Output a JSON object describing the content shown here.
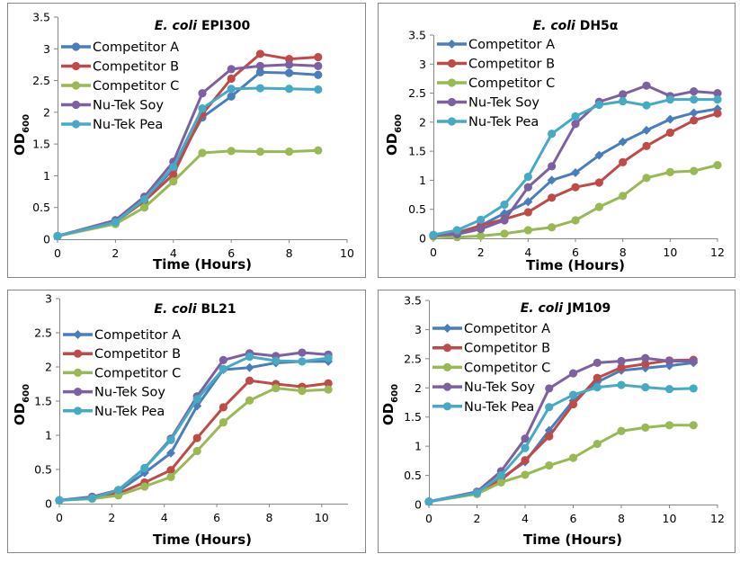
{
  "chart_data": [
    {
      "type": "line",
      "title_italic": "E. coli",
      "title_strain": "EPI300",
      "xlabel": "Time (Hours)",
      "ylabel": "OD",
      "ylabel_sub": "600",
      "xlim": [
        0,
        10
      ],
      "ylim": [
        0,
        3.5
      ],
      "xticks": [
        0,
        2,
        4,
        6,
        8,
        10
      ],
      "yticks": [
        0,
        0.5,
        1,
        1.5,
        2,
        2.5,
        3,
        3.5
      ],
      "grid": false,
      "legend": "top-left",
      "x": [
        0,
        2,
        3,
        4,
        5,
        6,
        7,
        8,
        9
      ],
      "series": [
        {
          "name": "Competitor A",
          "color": "#4a7ebb",
          "marker": "circle",
          "values": [
            0.05,
            0.28,
            0.63,
            1.1,
            1.92,
            2.25,
            2.63,
            2.62,
            2.59
          ]
        },
        {
          "name": "Competitor B",
          "color": "#be4b48",
          "marker": "circle",
          "values": [
            0.05,
            0.27,
            0.6,
            1.02,
            1.97,
            2.53,
            2.92,
            2.84,
            2.87
          ]
        },
        {
          "name": "Competitor C",
          "color": "#98b954",
          "marker": "circle",
          "values": [
            0.05,
            0.24,
            0.5,
            0.91,
            1.36,
            1.39,
            1.38,
            1.38,
            1.4
          ]
        },
        {
          "name": "Nu-Tek Soy",
          "color": "#7d60a0",
          "marker": "circle",
          "values": [
            0.05,
            0.3,
            0.67,
            1.22,
            2.3,
            2.68,
            2.73,
            2.75,
            2.73
          ]
        },
        {
          "name": "Nu-Tek Pea",
          "color": "#46aac5",
          "marker": "circle",
          "values": [
            0.05,
            0.27,
            0.63,
            1.14,
            2.06,
            2.37,
            2.38,
            2.37,
            2.36
          ]
        }
      ]
    },
    {
      "type": "line",
      "title_italic": "E. coli",
      "title_strain": "DH5α",
      "xlabel": "Time (Hours)",
      "ylabel": "OD",
      "ylabel_sub": "600",
      "xlim": [
        0,
        12
      ],
      "ylim": [
        0,
        3.5
      ],
      "xticks": [
        0,
        2,
        4,
        6,
        8,
        10,
        12
      ],
      "yticks": [
        0,
        0.5,
        1,
        1.5,
        2,
        2.5,
        3,
        3.5
      ],
      "grid": false,
      "legend": "top-left",
      "x": [
        0,
        1,
        2,
        3,
        4,
        5,
        6,
        7,
        8,
        9,
        10,
        11,
        12
      ],
      "series": [
        {
          "name": "Competitor A",
          "color": "#4a7ebb",
          "marker": "diamond",
          "values": [
            0.05,
            0.1,
            0.22,
            0.43,
            0.63,
            1.0,
            1.13,
            1.43,
            1.66,
            1.86,
            2.05,
            2.16,
            2.23
          ]
        },
        {
          "name": "Competitor B",
          "color": "#be4b48",
          "marker": "circle",
          "values": [
            0.05,
            0.08,
            0.22,
            0.33,
            0.45,
            0.7,
            0.88,
            0.96,
            1.31,
            1.59,
            1.82,
            2.03,
            2.15
          ]
        },
        {
          "name": "Competitor C",
          "color": "#98b954",
          "marker": "circle",
          "values": [
            0.03,
            0.02,
            0.04,
            0.08,
            0.14,
            0.19,
            0.31,
            0.54,
            0.73,
            1.04,
            1.14,
            1.16,
            1.26
          ]
        },
        {
          "name": "Nu-Tek Soy",
          "color": "#7d60a0",
          "marker": "circle",
          "values": [
            0.05,
            0.07,
            0.16,
            0.31,
            0.88,
            1.24,
            1.97,
            2.35,
            2.48,
            2.63,
            2.45,
            2.53,
            2.5
          ]
        },
        {
          "name": "Nu-Tek Pea",
          "color": "#46aac5",
          "marker": "circle",
          "values": [
            0.06,
            0.14,
            0.32,
            0.58,
            1.06,
            1.8,
            2.1,
            2.3,
            2.36,
            2.29,
            2.39,
            2.39,
            2.39
          ]
        }
      ]
    },
    {
      "type": "line",
      "title_italic": "E. coli",
      "title_strain": "BL21",
      "xlabel": "Time (Hours)",
      "ylabel": "OD",
      "ylabel_sub": "600",
      "xlim": [
        0,
        11
      ],
      "ylim": [
        0,
        3
      ],
      "xticks": [
        0,
        2,
        4,
        6,
        8,
        10
      ],
      "yticks": [
        0,
        0.5,
        1,
        1.5,
        2,
        2.5,
        3
      ],
      "grid": false,
      "legend": "top-left",
      "x": [
        0,
        1.25,
        2.25,
        3.25,
        4.25,
        5.25,
        6.25,
        7.25,
        8.25,
        9.25,
        10.25
      ],
      "series": [
        {
          "name": "Competitor A",
          "color": "#4a7ebb",
          "marker": "diamond",
          "values": [
            0.05,
            0.08,
            0.18,
            0.45,
            0.74,
            1.43,
            1.96,
            1.99,
            2.06,
            2.08,
            2.08
          ]
        },
        {
          "name": "Competitor B",
          "color": "#be4b48",
          "marker": "circle",
          "values": [
            0.05,
            0.08,
            0.15,
            0.31,
            0.49,
            0.96,
            1.41,
            1.8,
            1.75,
            1.71,
            1.76
          ]
        },
        {
          "name": "Competitor C",
          "color": "#98b954",
          "marker": "circle",
          "values": [
            0.05,
            0.07,
            0.12,
            0.25,
            0.39,
            0.77,
            1.19,
            1.51,
            1.69,
            1.65,
            1.67
          ]
        },
        {
          "name": "Nu-Tek Soy",
          "color": "#7d60a0",
          "marker": "circle",
          "values": [
            0.05,
            0.1,
            0.2,
            0.52,
            0.95,
            1.57,
            2.1,
            2.2,
            2.16,
            2.21,
            2.18
          ]
        },
        {
          "name": "Nu-Tek Pea",
          "color": "#46aac5",
          "marker": "circle",
          "values": [
            0.05,
            0.08,
            0.2,
            0.52,
            0.93,
            1.53,
            1.97,
            2.15,
            2.09,
            2.08,
            2.13
          ]
        }
      ]
    },
    {
      "type": "line",
      "title_italic": "E. coli",
      "title_strain": "JM109",
      "xlabel": "Time (Hours)",
      "ylabel": "OD",
      "ylabel_sub": "600",
      "xlim": [
        0,
        12
      ],
      "ylim": [
        0,
        3.5
      ],
      "xticks": [
        0,
        2,
        4,
        6,
        8,
        10,
        12
      ],
      "yticks": [
        0,
        0.5,
        1,
        1.5,
        2,
        2.5,
        3,
        3.5
      ],
      "grid": false,
      "legend": "top-left",
      "x": [
        0,
        2,
        3,
        4,
        5,
        6,
        7,
        8,
        9,
        10,
        11
      ],
      "series": [
        {
          "name": "Competitor A",
          "color": "#4a7ebb",
          "marker": "diamond",
          "values": [
            0.05,
            0.2,
            0.45,
            0.73,
            1.27,
            1.78,
            2.1,
            2.3,
            2.34,
            2.38,
            2.43
          ]
        },
        {
          "name": "Competitor B",
          "color": "#be4b48",
          "marker": "circle",
          "values": [
            0.05,
            0.2,
            0.42,
            0.76,
            1.17,
            1.72,
            2.17,
            2.35,
            2.41,
            2.47,
            2.48
          ]
        },
        {
          "name": "Competitor C",
          "color": "#98b954",
          "marker": "circle",
          "values": [
            0.05,
            0.18,
            0.38,
            0.51,
            0.67,
            0.8,
            1.04,
            1.26,
            1.32,
            1.36,
            1.36
          ]
        },
        {
          "name": "Nu-Tek Soy",
          "color": "#7d60a0",
          "marker": "circle",
          "values": [
            0.05,
            0.22,
            0.57,
            1.13,
            1.99,
            2.25,
            2.43,
            2.46,
            2.51,
            2.46,
            2.46
          ]
        },
        {
          "name": "Nu-Tek Pea",
          "color": "#46aac5",
          "marker": "circle",
          "values": [
            0.05,
            0.2,
            0.5,
            0.97,
            1.67,
            1.88,
            2.01,
            2.05,
            2.01,
            1.98,
            1.99
          ]
        }
      ]
    }
  ]
}
